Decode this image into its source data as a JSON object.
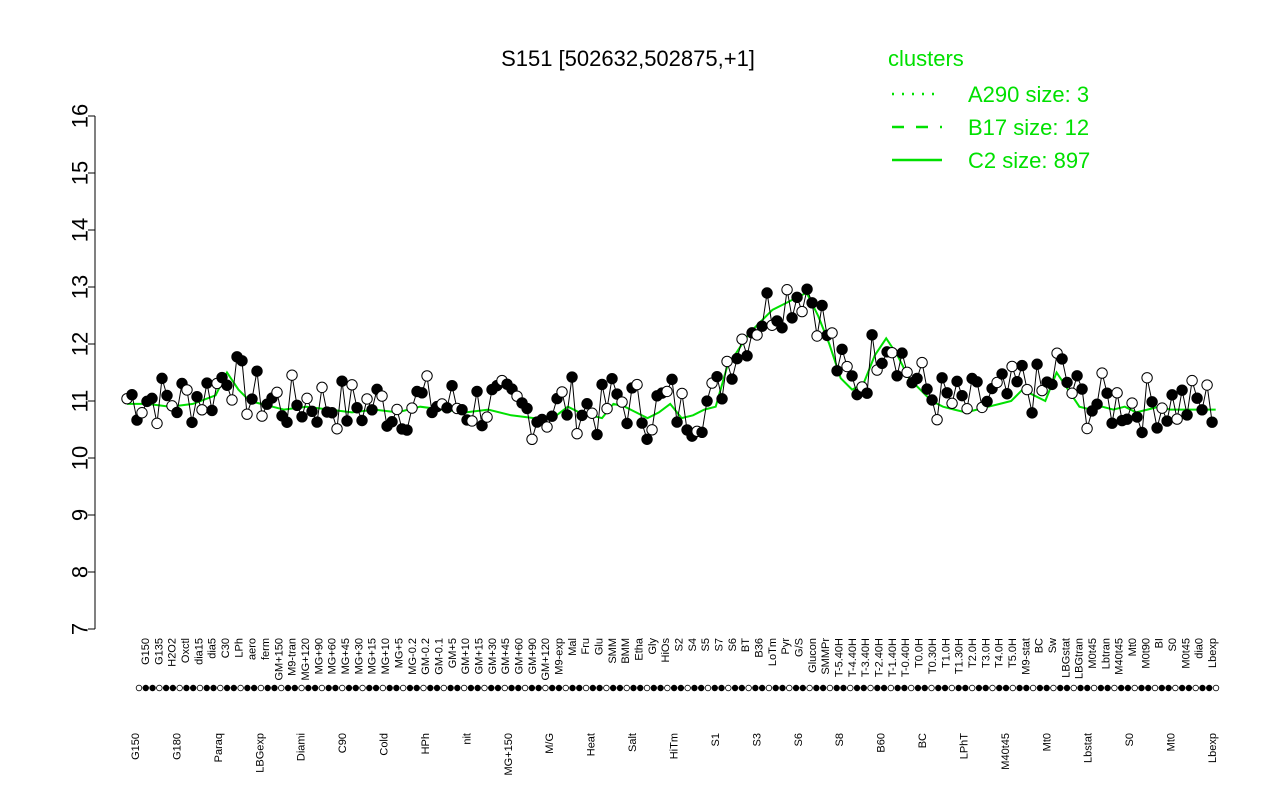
{
  "chart_data": {
    "type": "scatter",
    "title": "S151 [502632,502875,+1]",
    "xlabel": "",
    "ylabel": "",
    "ylim": [
      7,
      16
    ],
    "yticks": [
      7,
      8,
      9,
      10,
      11,
      12,
      13,
      14,
      15,
      16
    ],
    "legend": {
      "title": "clusters",
      "placement": "top-right",
      "color": "#00e000",
      "entries": [
        {
          "label": "A290 size: 3",
          "style": "dotted"
        },
        {
          "label": "B17 size: 12",
          "style": "dashed"
        },
        {
          "label": "C2 size: 897",
          "style": "solid"
        }
      ]
    },
    "x_labels_upper": [
      "G150",
      "G135",
      "H2O2",
      "Oxctl",
      "dia15",
      "dia5",
      "C30",
      "LPh",
      "aero",
      "ferm",
      "GM+150",
      "M9-tran",
      "MG+120",
      "MG+90",
      "MG+60",
      "MG+45",
      "MG+30",
      "MG+15",
      "MG+10",
      "MG+5",
      "MG-0.2",
      "GM-0.2",
      "GM-0.1",
      "GM+5",
      "GM+10",
      "GM+15",
      "GM+30",
      "GM+45",
      "GM+60",
      "GM+90",
      "GM+120",
      "M9-exp",
      "Mal",
      "Fru",
      "Glu",
      "SMM",
      "BMM",
      "Etha",
      "Gly",
      "HiOs",
      "S2",
      "S4",
      "S5",
      "S7",
      "S6",
      "BT",
      "B36",
      "LoTm",
      "Pyr",
      "G/S",
      "Glucon",
      "SMMPr",
      "T-5.40H",
      "T-4.40H",
      "T-3.40H",
      "T-2.40H",
      "T-1.40H",
      "T-0.40H",
      "T0.0H",
      "T0.30H",
      "T1.0H",
      "T1.30H",
      "T2.0H",
      "T3.0H",
      "T4.0H",
      "T5.0H",
      "M9-stat",
      "BC",
      "Sw",
      "LBGstat",
      "LBGtran",
      "M0t45",
      "Lbtran",
      "M40t45",
      "Mt0",
      "M0t90",
      "BI",
      "S0",
      "M0t45",
      "dia0",
      "Lbexp"
    ],
    "x_labels_lower": [
      "G150",
      "G180",
      "Paraq",
      "LBGexp",
      "Diami",
      "C90",
      "Cold",
      "HPh",
      "nit",
      "MG+150",
      "M/G",
      "Heat",
      "Salt",
      "HiTm",
      "S1",
      "S3",
      "S6",
      "S8",
      "B60",
      "BC",
      "LPhT",
      "M40t45",
      "Mt0",
      "Lbstat",
      "S0",
      "Mt0",
      "Lbexp"
    ],
    "series": [
      {
        "style": "solid",
        "color": "#00e000",
        "points": [
          {
            "x": 1,
            "y": 10.95
          },
          {
            "x": 10,
            "y": 10.95
          },
          {
            "x": 20,
            "y": 10.9
          },
          {
            "x": 30,
            "y": 10.95
          },
          {
            "x": 40,
            "y": 11.1
          },
          {
            "x": 45,
            "y": 11.5
          },
          {
            "x": 50,
            "y": 11.2
          },
          {
            "x": 55,
            "y": 11.0
          },
          {
            "x": 60,
            "y": 10.95
          },
          {
            "x": 65,
            "y": 10.9
          },
          {
            "x": 70,
            "y": 10.85
          },
          {
            "x": 80,
            "y": 10.9
          },
          {
            "x": 90,
            "y": 10.85
          },
          {
            "x": 100,
            "y": 10.8
          },
          {
            "x": 110,
            "y": 10.85
          },
          {
            "x": 120,
            "y": 10.8
          },
          {
            "x": 130,
            "y": 10.9
          },
          {
            "x": 140,
            "y": 10.85
          },
          {
            "x": 150,
            "y": 10.8
          },
          {
            "x": 160,
            "y": 10.85
          },
          {
            "x": 170,
            "y": 10.75
          },
          {
            "x": 180,
            "y": 10.7
          },
          {
            "x": 190,
            "y": 10.75
          },
          {
            "x": 195,
            "y": 10.9
          },
          {
            "x": 200,
            "y": 10.8
          },
          {
            "x": 205,
            "y": 10.75
          },
          {
            "x": 210,
            "y": 10.7
          },
          {
            "x": 215,
            "y": 10.95
          },
          {
            "x": 220,
            "y": 10.9
          },
          {
            "x": 225,
            "y": 10.8
          },
          {
            "x": 230,
            "y": 10.7
          },
          {
            "x": 235,
            "y": 10.8
          },
          {
            "x": 240,
            "y": 10.95
          },
          {
            "x": 245,
            "y": 10.7
          },
          {
            "x": 250,
            "y": 10.75
          },
          {
            "x": 255,
            "y": 10.85
          },
          {
            "x": 260,
            "y": 10.9
          },
          {
            "x": 265,
            "y": 11.6
          },
          {
            "x": 270,
            "y": 11.9
          },
          {
            "x": 275,
            "y": 12.2
          },
          {
            "x": 280,
            "y": 12.4
          },
          {
            "x": 285,
            "y": 12.6
          },
          {
            "x": 290,
            "y": 12.7
          },
          {
            "x": 295,
            "y": 12.8
          },
          {
            "x": 300,
            "y": 12.9
          },
          {
            "x": 305,
            "y": 12.5
          },
          {
            "x": 310,
            "y": 12.0
          },
          {
            "x": 315,
            "y": 11.4
          },
          {
            "x": 320,
            "y": 11.2
          },
          {
            "x": 325,
            "y": 11.3
          },
          {
            "x": 330,
            "y": 11.8
          },
          {
            "x": 335,
            "y": 12.1
          },
          {
            "x": 340,
            "y": 11.8
          },
          {
            "x": 345,
            "y": 11.4
          },
          {
            "x": 350,
            "y": 11.2
          },
          {
            "x": 355,
            "y": 11.0
          },
          {
            "x": 360,
            "y": 10.9
          },
          {
            "x": 365,
            "y": 10.85
          },
          {
            "x": 370,
            "y": 10.8
          },
          {
            "x": 375,
            "y": 10.85
          },
          {
            "x": 380,
            "y": 10.9
          },
          {
            "x": 385,
            "y": 10.95
          },
          {
            "x": 390,
            "y": 11.0
          },
          {
            "x": 395,
            "y": 11.2
          },
          {
            "x": 400,
            "y": 11.1
          },
          {
            "x": 405,
            "y": 11.0
          },
          {
            "x": 410,
            "y": 11.5
          },
          {
            "x": 415,
            "y": 11.2
          },
          {
            "x": 420,
            "y": 10.9
          },
          {
            "x": 425,
            "y": 10.85
          },
          {
            "x": 430,
            "y": 10.9
          },
          {
            "x": 435,
            "y": 10.85
          },
          {
            "x": 440,
            "y": 10.9
          },
          {
            "x": 445,
            "y": 10.8
          },
          {
            "x": 450,
            "y": 10.85
          },
          {
            "x": 455,
            "y": 10.9
          },
          {
            "x": 460,
            "y": 10.85
          },
          {
            "x": 465,
            "y": 10.85
          },
          {
            "x": 470,
            "y": 10.85
          },
          {
            "x": 475,
            "y": 10.85
          },
          {
            "x": 480,
            "y": 10.85
          }
        ]
      }
    ]
  }
}
